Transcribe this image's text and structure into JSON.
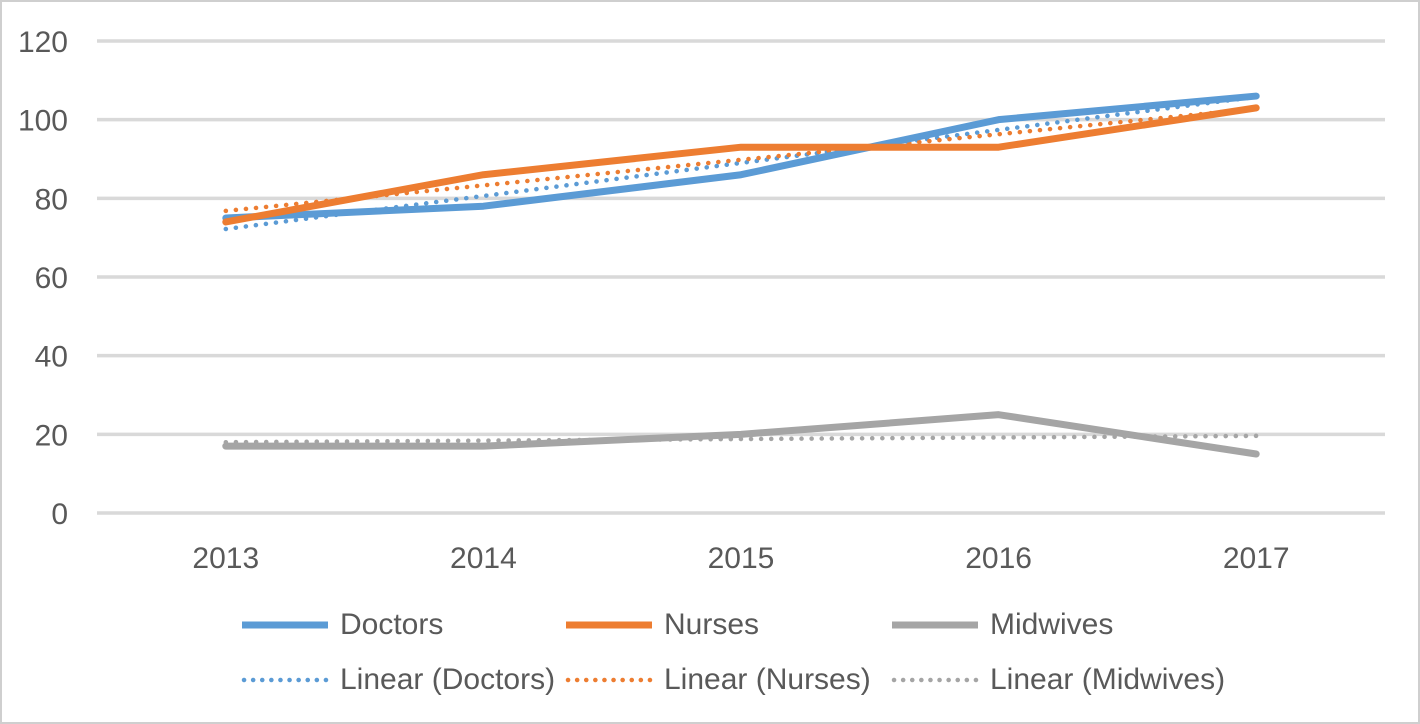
{
  "chart_data": {
    "type": "line",
    "categories": [
      "2013",
      "2014",
      "2015",
      "2016",
      "2017"
    ],
    "series": [
      {
        "name": "Doctors",
        "color": "#5B9BD5",
        "values": [
          75,
          78,
          86,
          100,
          106
        ]
      },
      {
        "name": "Nurses",
        "color": "#ED7D31",
        "values": [
          74,
          86,
          93,
          93,
          103
        ]
      },
      {
        "name": "Midwives",
        "color": "#A5A5A5",
        "values": [
          17,
          17,
          20,
          25,
          15
        ]
      }
    ],
    "trendlines": [
      {
        "name": "Linear (Doctors)",
        "color": "#5B9BD5",
        "of_series": 0
      },
      {
        "name": "Linear (Nurses)",
        "color": "#ED7D31",
        "of_series": 1
      },
      {
        "name": "Linear (Midwives)",
        "color": "#A5A5A5",
        "of_series": 2
      }
    ],
    "title": "",
    "xlabel": "",
    "ylabel": "",
    "yticks": [
      0,
      20,
      40,
      60,
      80,
      100,
      120
    ],
    "ylim": [
      0,
      120
    ],
    "grid": true,
    "legend_position": "bottom",
    "gridline_color": "#D9D9D9",
    "axis_text_color": "#595959",
    "background_color": "#FFFFFF",
    "border_color": "#CFCFCF"
  }
}
